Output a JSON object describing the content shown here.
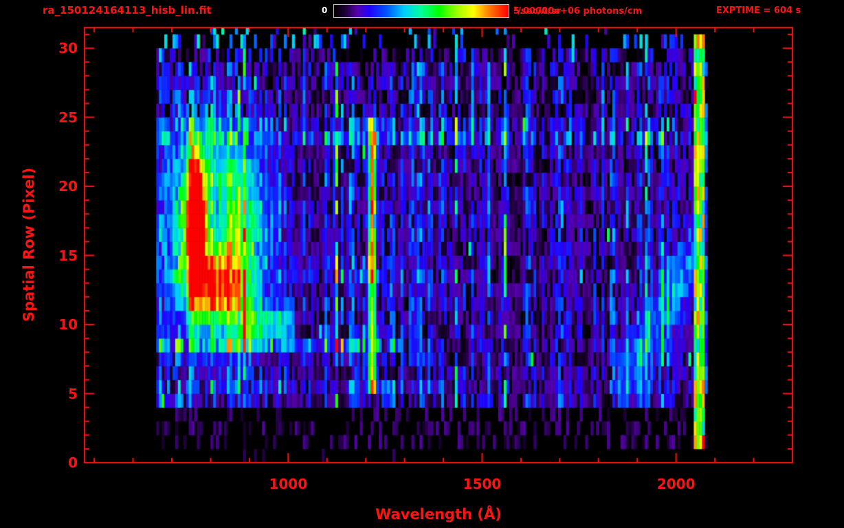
{
  "colors": {
    "background": "#000000",
    "accent_red": "#ff1212",
    "colorbar_zero_label": "#ffffff",
    "colorbar_border": "#c8c8c8"
  },
  "header": {
    "filename": "ra_150124164113_hisb_lin.fit",
    "exptime": "EXPTIME = 604 s",
    "colorbar": {
      "min_label": "0",
      "max_label_prefix": "5.00000e+06 photons/cm",
      "max_label_sup": "2",
      "max_label_suffix": "/sec/A/sr"
    }
  },
  "chart_data": {
    "type": "heatmap",
    "title": "ra_150124164113_hisb_lin.fit",
    "xlabel": "Wavelength (Å)",
    "ylabel": "Spatial Row (Pixel)",
    "xlim": [
      475,
      2300
    ],
    "ylim": [
      0,
      31.5
    ],
    "x_major_ticks": [
      1000,
      1500,
      2000
    ],
    "x_minor_tick_step": 100,
    "y_major_ticks": [
      0,
      5,
      10,
      15,
      20,
      25,
      30
    ],
    "y_minor_tick_step": 1,
    "colorbar_range": [
      0,
      5000000
    ],
    "colorbar_units": "photons/cm^2/sec/A/sr",
    "exposure_time_s": 604,
    "colormap_stops": [
      [
        0.0,
        "#000000"
      ],
      [
        0.06,
        "#1a0033"
      ],
      [
        0.13,
        "#5500aa"
      ],
      [
        0.2,
        "#2200ff"
      ],
      [
        0.3,
        "#0055ff"
      ],
      [
        0.4,
        "#00ccff"
      ],
      [
        0.5,
        "#00ff99"
      ],
      [
        0.6,
        "#00ff00"
      ],
      [
        0.7,
        "#99ff00"
      ],
      [
        0.8,
        "#ffff00"
      ],
      [
        0.88,
        "#ff8800"
      ],
      [
        1.0,
        "#ff0000"
      ]
    ],
    "detector": {
      "wavelength_range": [
        660,
        2075
      ],
      "rows": 32
    },
    "noise_seed": 20150124,
    "features": [
      {
        "name": "coma-emission-blob",
        "shape": "gaussian",
        "x_center": 820,
        "y_center": 17,
        "x_sigma": 85,
        "y_sigma": 5.2,
        "amplitude": 0.55
      },
      {
        "name": "blob-red-core",
        "shape": "gaussian",
        "x_center": 762,
        "y_center": 17,
        "x_sigma": 16,
        "y_sigma": 3.8,
        "amplitude": 1.15
      },
      {
        "name": "blob-lower-lobe",
        "shape": "gaussian",
        "x_center": 830,
        "y_center": 12.5,
        "x_sigma": 45,
        "y_sigma": 1.8,
        "amplitude": 0.5
      },
      {
        "name": "blob-center-dip",
        "shape": "gaussian",
        "x_center": 815,
        "y_center": 17.5,
        "x_sigma": 20,
        "y_sigma": 1.6,
        "amplitude": -0.3
      },
      {
        "name": "lyman-alpha-emission-line",
        "shape": "vertical-line",
        "x_center": 1216,
        "x_sigma": 7,
        "row_range": [
          5,
          24
        ],
        "amplitude": 0.72
      },
      {
        "name": "right-edge-bright-column",
        "shape": "column",
        "x_range": [
          2048,
          2072
        ],
        "amplitude": 0.4
      },
      {
        "name": "diagonal-cyan-ridge",
        "shape": "diagonal",
        "x_range": [
          1850,
          2060
        ],
        "row_start": 5,
        "slope_rows_per_angstrom": 0.05,
        "amplitude": 0.22
      },
      {
        "name": "row10-streak",
        "shape": "horizontal-streak",
        "x_range": [
          880,
          1020
        ],
        "row_center": 10,
        "amplitude": 0.3
      }
    ],
    "bright_rows": [
      {
        "row": 8,
        "factor": 2.1,
        "x_max": 1300
      },
      {
        "row": 5,
        "factor": 1.35,
        "x_max": 1300
      },
      {
        "row": 13,
        "factor": 1.35,
        "x_max": 1300
      },
      {
        "row": 14,
        "factor": 1.25,
        "x_max": 1300
      },
      {
        "row": 23,
        "factor": 1.6,
        "x_max": 2075
      },
      {
        "row": 24,
        "factor": 1.35,
        "x_max": 2075
      }
    ]
  }
}
